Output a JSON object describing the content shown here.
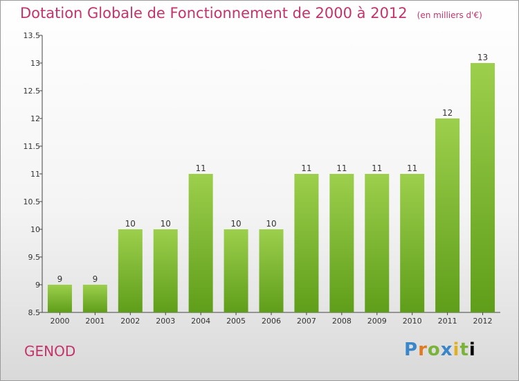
{
  "header": {
    "title": "Dotation Globale de Fonctionnement de 2000 à 2012",
    "unit": "(en milliers d'€)"
  },
  "footer": {
    "commune": "GENOD",
    "logo": "Proxiti"
  },
  "colors": {
    "title": "#c4336a",
    "bar_top": "#9ccf4c",
    "bar_bottom": "#5f9e1a"
  },
  "chart_data": {
    "type": "bar",
    "title": "Dotation Globale de Fonctionnement de 2000 à 2012",
    "subtitle": "(en milliers d'€)",
    "xlabel": "",
    "ylabel": "",
    "categories": [
      "2000",
      "2001",
      "2002",
      "2003",
      "2004",
      "2005",
      "2006",
      "2007",
      "2008",
      "2009",
      "2010",
      "2011",
      "2012"
    ],
    "values": [
      9,
      9,
      10,
      10,
      11,
      10,
      10,
      11,
      11,
      11,
      11,
      12,
      13
    ],
    "data_labels": [
      "9",
      "9",
      "10",
      "10",
      "11",
      "10",
      "10",
      "11",
      "11",
      "11",
      "11",
      "12",
      "13"
    ],
    "ylim": [
      8.5,
      13.5
    ],
    "yticks": [
      8.5,
      9,
      9.5,
      10,
      10.5,
      11,
      11.5,
      12,
      12.5,
      13,
      13.5
    ],
    "ytick_labels": [
      "8.5",
      "9",
      "9.5",
      "10",
      "10.5",
      "11",
      "11.5",
      "12",
      "12.5",
      "13",
      "13.5"
    ],
    "grid": false,
    "legend": "none"
  }
}
